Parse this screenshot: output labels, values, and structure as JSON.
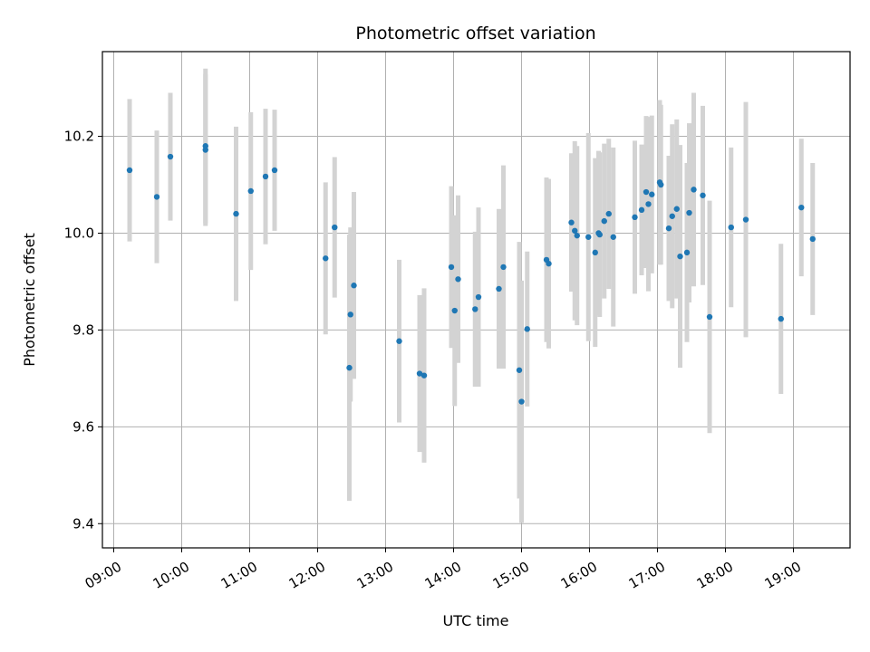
{
  "chart_data": {
    "type": "scatter",
    "title": "Photometric offset variation",
    "xlabel": "UTC time",
    "ylabel": "Photometric offset",
    "xlim": [
      "08:50",
      "19:50"
    ],
    "ylim": [
      9.35,
      10.375
    ],
    "x_ticks": [
      "09:00",
      "10:00",
      "11:00",
      "12:00",
      "13:00",
      "14:00",
      "15:00",
      "16:00",
      "17:00",
      "18:00",
      "19:00"
    ],
    "y_ticks": [
      9.4,
      9.6,
      9.8,
      10.0,
      10.2
    ],
    "y_tick_labels": [
      "9.4",
      "9.6",
      "9.8",
      "10.0",
      "10.2"
    ],
    "grid": true,
    "colors": {
      "marker": "#1f77b4",
      "errorbar": "#d3d3d3",
      "grid": "#b0b0b0"
    },
    "series": [
      {
        "x": [
          "09:14",
          "09:38",
          "09:50",
          "10:21",
          "10:21",
          "10:48",
          "11:01",
          "11:14",
          "11:22",
          "12:07",
          "12:15",
          "12:28",
          "12:29",
          "12:32",
          "13:12",
          "13:30",
          "13:34",
          "13:58",
          "14:01",
          "14:04",
          "14:19",
          "14:22",
          "14:40",
          "14:44",
          "14:58",
          "15:00",
          "15:05",
          "15:22",
          "15:24",
          "15:44",
          "15:47",
          "15:49",
          "15:59",
          "16:05",
          "16:08",
          "16:09",
          "16:13",
          "16:17",
          "16:21",
          "16:40",
          "16:46",
          "16:50",
          "16:52",
          "16:55",
          "17:02",
          "17:03",
          "17:10",
          "17:13",
          "17:17",
          "17:20",
          "17:26",
          "17:28",
          "17:32",
          "17:40",
          "17:46",
          "18:05",
          "18:18",
          "18:49",
          "19:07",
          "19:17",
          "19:20"
        ],
        "y": [
          10.13,
          10.075,
          10.158,
          10.172,
          10.18,
          10.04,
          10.087,
          10.117,
          10.13,
          9.948,
          10.012,
          9.722,
          9.832,
          9.892,
          9.777,
          9.71,
          9.706,
          9.93,
          9.84,
          9.905,
          9.843,
          9.868,
          9.885,
          9.93,
          9.717,
          9.652,
          9.802,
          9.945,
          9.937,
          10.022,
          10.005,
          9.995,
          9.992,
          9.96,
          10.0,
          9.997,
          10.025,
          10.04,
          9.992,
          10.033,
          10.048,
          10.085,
          10.06,
          10.08,
          10.105,
          10.1,
          10.01,
          10.035,
          10.05,
          9.952,
          9.96,
          10.042,
          10.09,
          10.078,
          9.827,
          10.012,
          10.028,
          9.823,
          10.053,
          9.988,
          10.0
        ],
        "yerr": [
          0.147,
          0.137,
          0.132,
          0.157,
          0.16,
          0.18,
          0.163,
          0.14,
          0.125,
          0.157,
          0.145,
          0.275,
          0.18,
          0.193,
          0.168,
          0.162,
          0.18,
          0.167,
          0.197,
          0.173,
          0.16,
          0.185,
          0.165,
          0.21,
          0.265,
          0.25,
          0.16,
          0.17,
          0.175,
          0.143,
          0.185,
          0.185,
          0.215,
          0.195,
          0.17,
          0.17,
          0.16,
          0.155,
          0.185,
          0.158,
          0.135,
          0.157,
          0.18,
          0.163,
          0.17,
          0.165,
          0.15,
          0.19,
          0.185,
          0.23,
          0.185,
          0.185,
          0.2,
          0.185,
          0.24,
          0.165,
          0.243,
          0.155,
          0.142,
          0.157,
          0.0
        ]
      }
    ]
  }
}
